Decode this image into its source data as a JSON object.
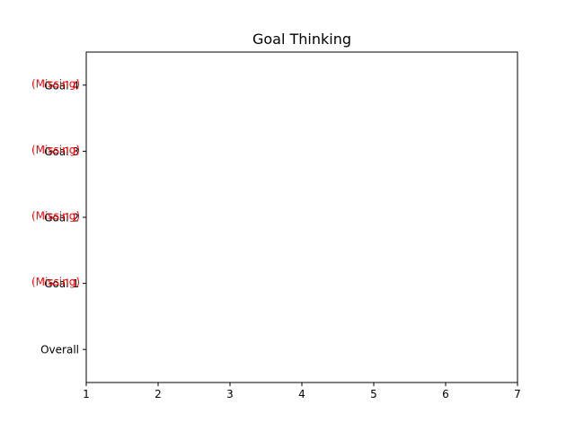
{
  "chart_data": {
    "type": "scatter",
    "title": "Goal Thinking",
    "xlabel": "",
    "ylabel": "",
    "xlim": [
      1,
      7
    ],
    "x_ticks": [
      1,
      2,
      3,
      4,
      5,
      6,
      7
    ],
    "categories": [
      "Overall",
      "Goal 1",
      "Goal 2",
      "Goal 3",
      "Goal 4"
    ],
    "annotations": [
      {
        "category": "Goal 1",
        "text": "(Missing)"
      },
      {
        "category": "Goal 2",
        "text": "(Missing)"
      },
      {
        "category": "Goal 3",
        "text": "(Missing)"
      },
      {
        "category": "Goal 4",
        "text": "(Missing)"
      }
    ],
    "missing_color": "#ff0000",
    "grid": false
  }
}
